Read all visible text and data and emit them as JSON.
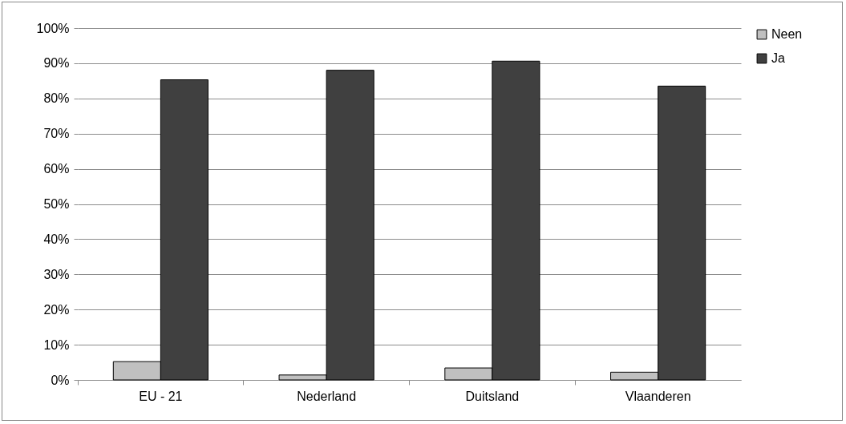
{
  "chart_data": {
    "type": "bar",
    "categories": [
      "EU - 21",
      "Nederland",
      "Duitsland",
      "Vlaanderen"
    ],
    "series": [
      {
        "name": "Neen",
        "color": "#c0c0c0",
        "values": [
          5.2,
          1.4,
          3.4,
          2.2
        ]
      },
      {
        "name": "Ja",
        "color": "#404040",
        "values": [
          85.3,
          88.0,
          90.6,
          83.5
        ]
      }
    ],
    "ylim": [
      0,
      100
    ],
    "yticks": [
      {
        "value": 0,
        "label": "0%"
      },
      {
        "value": 10,
        "label": "10%"
      },
      {
        "value": 20,
        "label": "20%"
      },
      {
        "value": 30,
        "label": "30%"
      },
      {
        "value": 40,
        "label": "40%"
      },
      {
        "value": 50,
        "label": "50%"
      },
      {
        "value": 60,
        "label": "60%"
      },
      {
        "value": 70,
        "label": "70%"
      },
      {
        "value": 80,
        "label": "80%"
      },
      {
        "value": 90,
        "label": "90%"
      },
      {
        "value": 100,
        "label": "100%"
      }
    ],
    "grid": "y",
    "legend": "right"
  }
}
